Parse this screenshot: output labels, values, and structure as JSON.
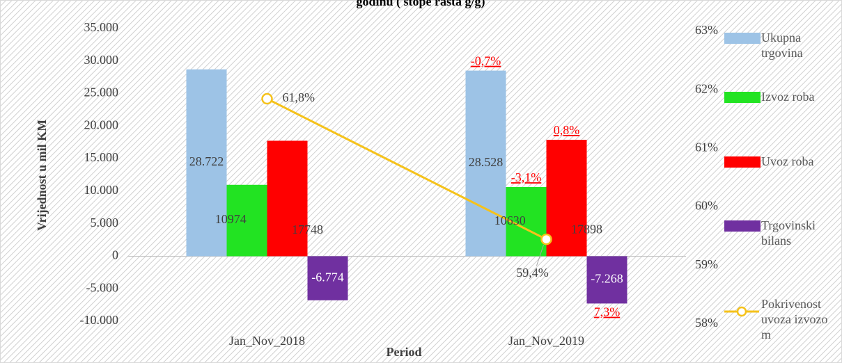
{
  "chart_data": {
    "type": "bar",
    "title": "godinu ( stope rasta g/g)",
    "ylabel": "Vrijednost u  mil KM",
    "xlabel": "Period",
    "categories": [
      "Jan_Nov_2018",
      "Jan_Nov_2019"
    ],
    "series": [
      {
        "name": "Ukupna trgovina",
        "color": "#9dc3e6",
        "values": [
          28722,
          28528
        ],
        "value_labels": [
          "28.722",
          "28.528"
        ]
      },
      {
        "name": "Izvoz roba",
        "color": "#22e322",
        "values": [
          10974,
          10630
        ],
        "value_labels": [
          "10974",
          "10630"
        ]
      },
      {
        "name": "Uvoz roba",
        "color": "#ff0000",
        "values": [
          17748,
          17898
        ],
        "value_labels": [
          "17748",
          "17898"
        ]
      },
      {
        "name": "Trgovinski bilans",
        "color": "#7030a0",
        "values": [
          -6774,
          -7268
        ],
        "value_labels": [
          "-6.774",
          "-7.268"
        ]
      },
      {
        "name": "Pokrivenost uvoza izvozom",
        "color": "#f5c21b",
        "type": "line",
        "axis": "y2",
        "values": [
          61.8,
          59.4
        ],
        "value_labels": [
          "61,8%",
          "59,4%"
        ]
      }
    ],
    "annotations": [
      "-0,7%",
      "-3,1%",
      "0,8%",
      "7,3%"
    ],
    "ylim": [
      -10000,
      35000
    ],
    "yticks": [
      {
        "value": -10000,
        "label": "-10.000"
      },
      {
        "value": -5000,
        "label": "-5.000"
      },
      0,
      {
        "value": 5000,
        "label": "5.000"
      },
      {
        "value": 10000,
        "label": "10.000"
      },
      {
        "value": 15000,
        "label": "15.000"
      },
      {
        "value": 20000,
        "label": "20.000"
      },
      {
        "value": 25000,
        "label": "25.000"
      },
      {
        "value": 30000,
        "label": "30.000"
      },
      {
        "value": 35000,
        "label": "35.000"
      }
    ],
    "y2lim": [
      58,
      63
    ],
    "y2ticks": [
      {
        "value": 58,
        "label": "58%"
      },
      {
        "value": 59,
        "label": "59%"
      },
      {
        "value": 60,
        "label": "60%"
      },
      {
        "value": 61,
        "label": "61%"
      },
      {
        "value": 62,
        "label": "62%"
      },
      {
        "value": 63,
        "label": "63%"
      }
    ],
    "legend": "right"
  }
}
